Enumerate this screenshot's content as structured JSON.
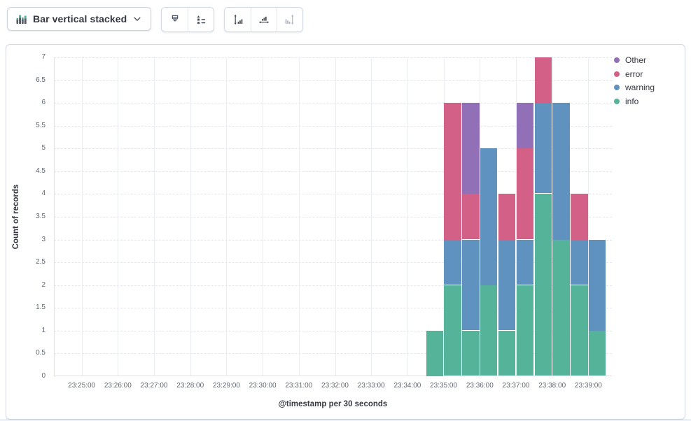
{
  "toolbar": {
    "chart_type": {
      "label": "Bar vertical stacked",
      "icon": "bar-vertical-stacked-icon",
      "chevron": "chevron-down-icon"
    },
    "groups": [
      {
        "buttons": [
          {
            "name": "visual-options",
            "icon": "brush-icon",
            "disabled": false
          },
          {
            "name": "legend-settings",
            "icon": "legend-icon",
            "disabled": false
          }
        ]
      },
      {
        "buttons": [
          {
            "name": "left-axis",
            "icon": "left-axis-icon",
            "disabled": false
          },
          {
            "name": "bottom-axis",
            "icon": "bottom-axis-icon",
            "disabled": false
          },
          {
            "name": "right-axis",
            "icon": "right-axis-icon",
            "disabled": true
          }
        ]
      }
    ]
  },
  "chart_data": {
    "type": "bar",
    "stacked": true,
    "y_axis_title": "Count of records",
    "x_axis_title": "@timestamp per 30 seconds",
    "ylim": [
      0,
      7
    ],
    "y_tick_step": 0.5,
    "grid": true,
    "legend_position": "right",
    "x_domain": [
      "23:24:14",
      "23:39:39"
    ],
    "x_ticks": [
      "23:25:00",
      "23:26:00",
      "23:27:00",
      "23:28:00",
      "23:29:00",
      "23:30:00",
      "23:31:00",
      "23:32:00",
      "23:33:00",
      "23:34:00",
      "23:35:00",
      "23:36:00",
      "23:37:00",
      "23:38:00",
      "23:39:00"
    ],
    "bucket_seconds": 30,
    "buckets": [
      "23:34:30",
      "23:35:00",
      "23:35:30",
      "23:36:00",
      "23:36:30",
      "23:37:00",
      "23:37:30",
      "23:38:00",
      "23:38:30",
      "23:39:00"
    ],
    "series": [
      {
        "name": "info",
        "color": "#54B399",
        "values": [
          1,
          2,
          1,
          2,
          1,
          2,
          4,
          3,
          2,
          1
        ]
      },
      {
        "name": "warning",
        "color": "#6092C0",
        "values": [
          0,
          1,
          2,
          3,
          2,
          1,
          2,
          3,
          1,
          2
        ]
      },
      {
        "name": "error",
        "color": "#D36086",
        "values": [
          0,
          3,
          1,
          0,
          1,
          2,
          1,
          0,
          1,
          0
        ]
      },
      {
        "name": "Other",
        "color": "#9170B8",
        "values": [
          0,
          0,
          2,
          0,
          0,
          1,
          0,
          0,
          0,
          0
        ]
      }
    ],
    "legend": [
      {
        "label": "Other",
        "color": "#9170B8"
      },
      {
        "label": "error",
        "color": "#D36086"
      },
      {
        "label": "warning",
        "color": "#6092C0"
      },
      {
        "label": "info",
        "color": "#54B399"
      }
    ]
  }
}
